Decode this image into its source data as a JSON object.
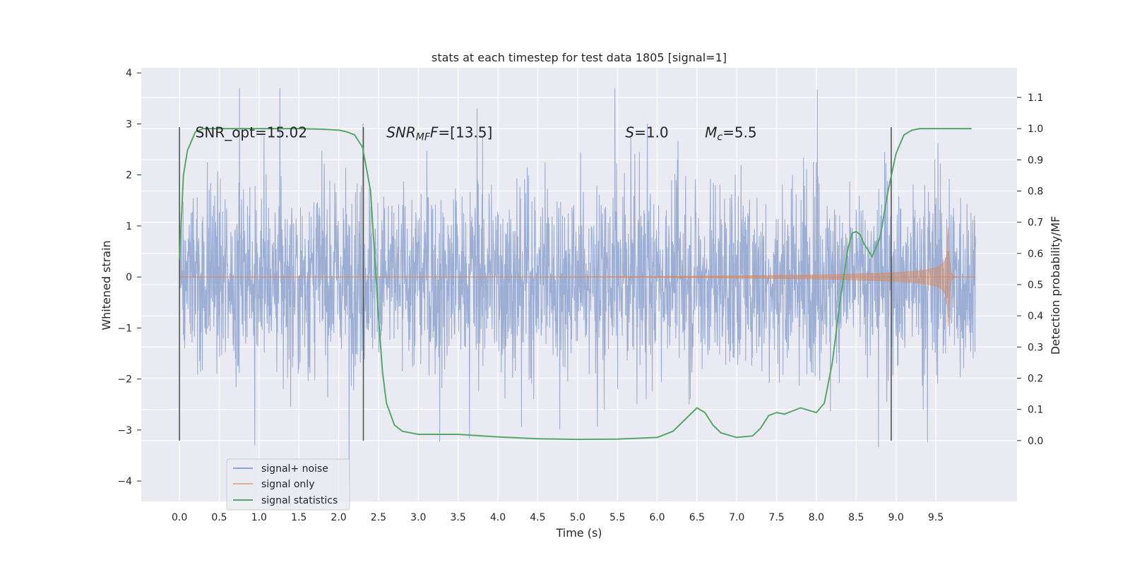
{
  "chart_data": {
    "type": "line",
    "title": "stats at each timestep for test data 1805 [signal=1]",
    "xlabel": "Time (s)",
    "ylabel": "Whitened strain",
    "y2label": "Detection probability/MF",
    "xlim": [
      -0.48,
      10.52
    ],
    "ylim": [
      -4.4,
      4.1
    ],
    "y2lim": [
      -0.195,
      1.195
    ],
    "x_ticks": [
      "0.0",
      "0.5",
      "1.0",
      "1.5",
      "2.0",
      "2.5",
      "3.0",
      "3.5",
      "4.0",
      "4.5",
      "5.0",
      "5.5",
      "6.0",
      "6.5",
      "7.0",
      "7.5",
      "8.0",
      "8.5",
      "9.0",
      "9.5"
    ],
    "y_ticks": [
      "4",
      "3",
      "2",
      "1",
      "0",
      "−1",
      "−2",
      "−3",
      "−4"
    ],
    "y2_ticks": [
      "1.1",
      "1.0",
      "0.9",
      "0.8",
      "0.7",
      "0.6",
      "0.5",
      "0.4",
      "0.3",
      "0.2",
      "0.1",
      "0.0"
    ],
    "grid": true,
    "legend_position": "lower-left",
    "annotations": [
      {
        "text": "SNR_opt=15.02",
        "x": 0.2,
        "y": 2.85
      },
      {
        "text": "SNR",
        "sub": "MF",
        "tail": "=[13.5]",
        "x": 2.6,
        "y": 2.85
      },
      {
        "text": "S",
        "tail": "=1.0",
        "x": 5.6,
        "y": 2.85
      },
      {
        "text": "M",
        "sub": "c",
        "tail": "=5.5",
        "x": 6.6,
        "y": 2.85
      }
    ],
    "vlines": [
      0.0,
      2.31,
      8.94
    ],
    "series": [
      {
        "name": "signal+ noise",
        "color": "#8ea3cf",
        "noise_envelope_peak": 3.7,
        "noise_envelope_min": -4.1,
        "x_range": [
          0.0,
          10.0
        ]
      },
      {
        "name": "signal only",
        "color": "#dd8452",
        "x_range": [
          0.0,
          10.0
        ],
        "peak_time": 9.65,
        "peak_amplitude": 1.35
      },
      {
        "name": "signal statistics",
        "color": "#55a868",
        "x": [
          0.0,
          0.05,
          0.1,
          0.2,
          0.3,
          0.5,
          1.0,
          1.5,
          1.8,
          2.0,
          2.1,
          2.2,
          2.3,
          2.4,
          2.45,
          2.5,
          2.55,
          2.6,
          2.7,
          2.8,
          3.0,
          3.5,
          4.0,
          4.5,
          5.0,
          5.5,
          6.0,
          6.2,
          6.4,
          6.5,
          6.6,
          6.7,
          6.8,
          7.0,
          7.2,
          7.3,
          7.4,
          7.5,
          7.6,
          7.7,
          7.8,
          8.0,
          8.1,
          8.2,
          8.3,
          8.4,
          8.45,
          8.5,
          8.55,
          8.6,
          8.7,
          8.8,
          8.9,
          9.0,
          9.1,
          9.2,
          9.3,
          9.5,
          9.7,
          9.95
        ],
        "y": [
          0.58,
          0.85,
          0.93,
          0.99,
          1.0,
          1.0,
          1.0,
          1.0,
          0.998,
          0.995,
          0.99,
          0.98,
          0.94,
          0.8,
          0.6,
          0.4,
          0.22,
          0.12,
          0.05,
          0.03,
          0.02,
          0.02,
          0.012,
          0.006,
          0.004,
          0.005,
          0.01,
          0.03,
          0.08,
          0.105,
          0.09,
          0.05,
          0.025,
          0.01,
          0.015,
          0.04,
          0.08,
          0.09,
          0.085,
          0.095,
          0.105,
          0.09,
          0.12,
          0.25,
          0.45,
          0.62,
          0.665,
          0.67,
          0.66,
          0.63,
          0.59,
          0.65,
          0.8,
          0.92,
          0.98,
          0.995,
          1.0,
          1.0,
          1.0,
          1.0
        ]
      }
    ]
  }
}
